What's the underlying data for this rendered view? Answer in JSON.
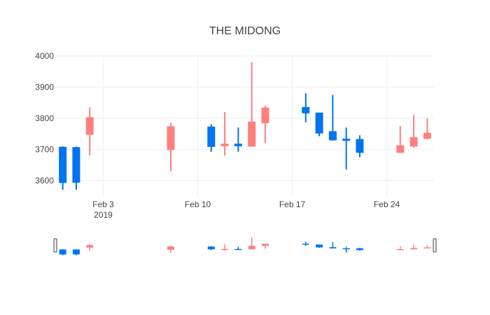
{
  "chart_data": {
    "type": "candlestick",
    "title": "THE MIDONG",
    "xlabel": "",
    "ylabel": "",
    "ylim": [
      3550,
      4000
    ],
    "y_ticks": [
      3600,
      3700,
      3800,
      3900,
      4000
    ],
    "x_ticks": [
      {
        "date": "2019-02-03",
        "label": "Feb 3",
        "sublabel": "2019"
      },
      {
        "date": "2019-02-10",
        "label": "Feb 10",
        "sublabel": ""
      },
      {
        "date": "2019-02-17",
        "label": "Feb 17",
        "sublabel": ""
      },
      {
        "date": "2019-02-24",
        "label": "Feb 24",
        "sublabel": ""
      }
    ],
    "xlim": [
      "2019-01-30T12:00",
      "2019-02-27T12:00"
    ],
    "increasing_color": "#FF7F7F",
    "decreasing_color": "#0074F0",
    "grid": true,
    "rangeslider": true,
    "candles": [
      {
        "date": "2019-01-31",
        "open": 3707,
        "high": 3710,
        "low": 3570,
        "close": 3593
      },
      {
        "date": "2019-02-01",
        "open": 3706,
        "high": 3709,
        "low": 3570,
        "close": 3594
      },
      {
        "date": "2019-02-02",
        "open": 3748,
        "high": 3835,
        "low": 3680,
        "close": 3802
      },
      {
        "date": "2019-02-08",
        "open": 3699,
        "high": 3785,
        "low": 3630,
        "close": 3773
      },
      {
        "date": "2019-02-11",
        "open": 3772,
        "high": 3780,
        "low": 3692,
        "close": 3709
      },
      {
        "date": "2019-02-12",
        "open": 3711,
        "high": 3820,
        "low": 3680,
        "close": 3717
      },
      {
        "date": "2019-02-13",
        "open": 3717,
        "high": 3770,
        "low": 3692,
        "close": 3711
      },
      {
        "date": "2019-02-14",
        "open": 3710,
        "high": 3980,
        "low": 3708,
        "close": 3788
      },
      {
        "date": "2019-02-15",
        "open": 3785,
        "high": 3840,
        "low": 3720,
        "close": 3833
      },
      {
        "date": "2019-02-18",
        "open": 3835,
        "high": 3880,
        "low": 3787,
        "close": 3817
      },
      {
        "date": "2019-02-19",
        "open": 3817,
        "high": 3818,
        "low": 3742,
        "close": 3752
      },
      {
        "date": "2019-02-20",
        "open": 3757,
        "high": 3875,
        "low": 3728,
        "close": 3730
      },
      {
        "date": "2019-02-21",
        "open": 3733,
        "high": 3770,
        "low": 3635,
        "close": 3730
      },
      {
        "date": "2019-02-22",
        "open": 3732,
        "high": 3745,
        "low": 3675,
        "close": 3690
      },
      {
        "date": "2019-02-25",
        "open": 3690,
        "high": 3775,
        "low": 3688,
        "close": 3712
      },
      {
        "date": "2019-02-26",
        "open": 3710,
        "high": 3810,
        "low": 3705,
        "close": 3738
      },
      {
        "date": "2019-02-27",
        "open": 3735,
        "high": 3800,
        "low": 3732,
        "close": 3752
      }
    ]
  }
}
